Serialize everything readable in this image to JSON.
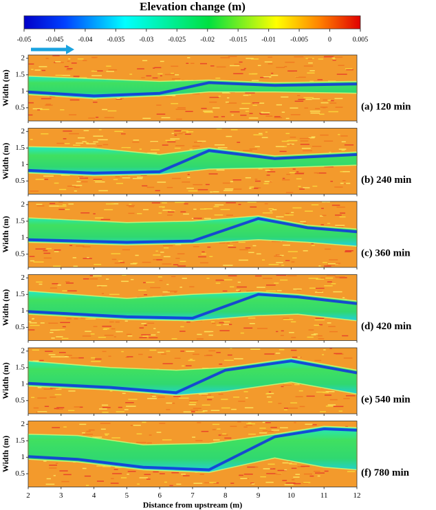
{
  "chart_data": {
    "type": "heatmap",
    "title": "Elevation change (m)",
    "colorbar": {
      "lim": [
        -0.05,
        0.005
      ],
      "ticks": [
        -0.05,
        -0.045,
        -0.04,
        -0.035,
        -0.03,
        -0.025,
        -0.02,
        -0.015,
        -0.01,
        -0.005,
        0,
        0.005
      ]
    },
    "panels": [
      "(a) 120 min",
      "(b) 240 min",
      "(c) 360 min",
      "(d) 420 min",
      "(e) 540 min",
      "(f) 780 min"
    ],
    "xlabel": "Distance from upstream (m)",
    "ylabel": "Width (m)",
    "xlim": [
      2,
      12
    ],
    "xticks": [
      2,
      3,
      4,
      5,
      6,
      7,
      8,
      9,
      10,
      11,
      12
    ],
    "ylim": [
      0.1,
      2.1
    ],
    "yticks": [
      0.5,
      1,
      1.5,
      2
    ]
  }
}
